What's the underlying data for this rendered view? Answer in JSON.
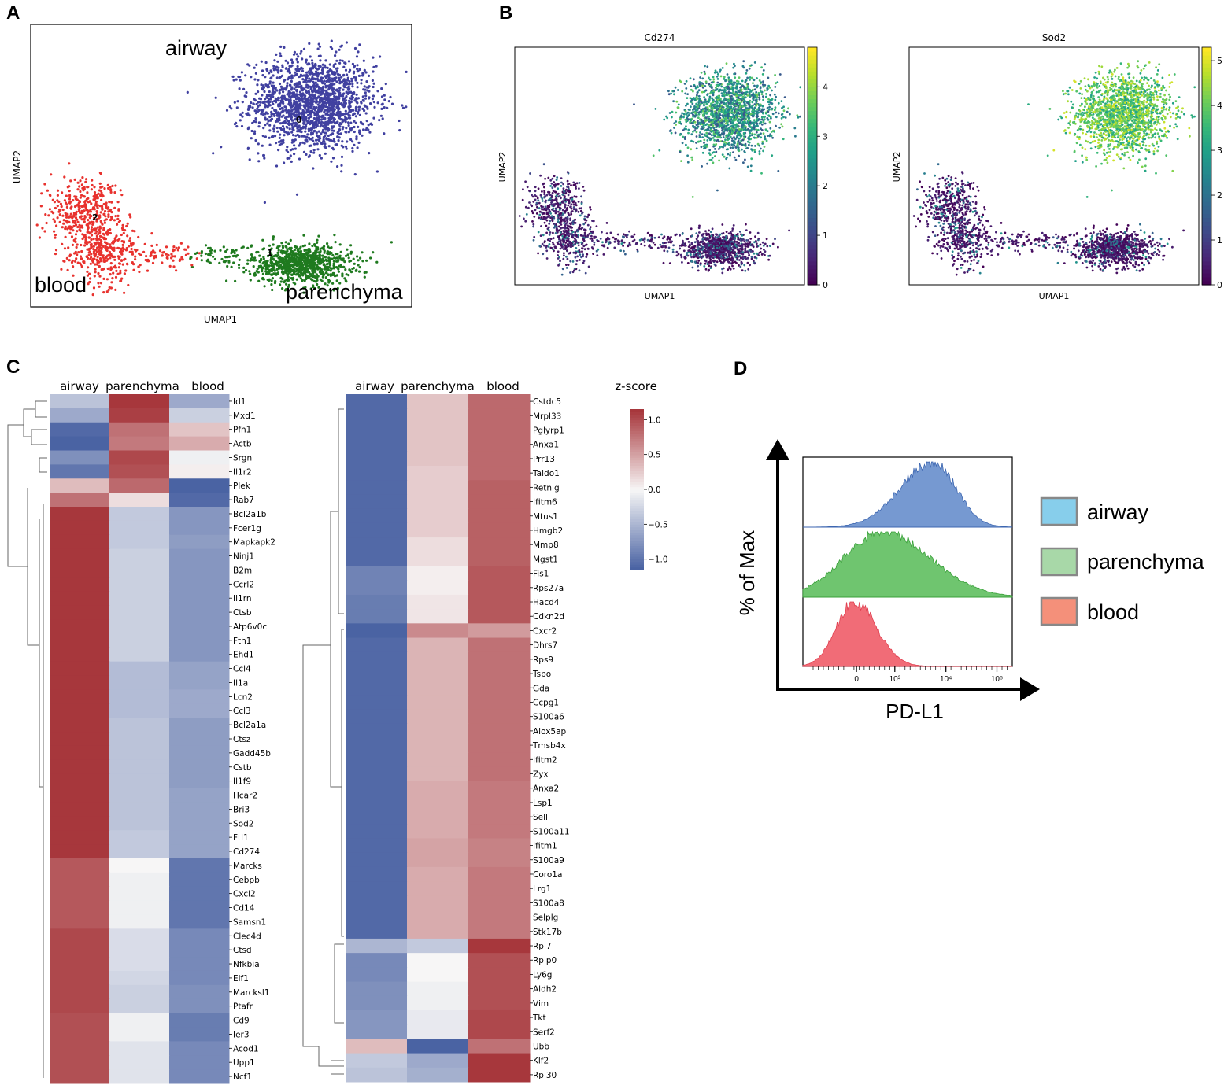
{
  "panel_letters": [
    "A",
    "B",
    "C",
    "D"
  ],
  "colors": {
    "airway": "#4040a0",
    "parenchyma": "#1f7a1f",
    "blood": "#e8322e",
    "hm_high": "#a7373c",
    "hm_mid": "#f7f6f6",
    "hm_low": "#4a63a3",
    "flow_airway": "#6f94cf",
    "flow_parenchyma": "#67c267",
    "flow_blood": "#f06470",
    "legend_airway": "#87ceeb",
    "legend_parenchyma": "#a8d8a8",
    "legend_blood": "#f4907a"
  },
  "chart_data": [
    {
      "type": "scatter",
      "panel": "A",
      "xlabel": "UMAP1",
      "ylabel": "UMAP2",
      "cluster_labels": [
        "airway",
        "parenchyma",
        "blood"
      ],
      "cluster_ids": [
        "0",
        "1",
        "2"
      ],
      "clusters": [
        {
          "name": "airway",
          "id": "0",
          "center": [
            3.0,
            6.5
          ],
          "spread": [
            2.0,
            1.9
          ],
          "n": 1700
        },
        {
          "name": "parenchyma",
          "id": "1",
          "center": [
            2.6,
            -0.6
          ],
          "spread": [
            1.6,
            0.8
          ],
          "n": 900
        },
        {
          "name": "blood",
          "id": "2",
          "center": [
            -4.8,
            0.8
          ],
          "spread": [
            1.1,
            1.3
          ],
          "n": 700
        }
      ]
    },
    {
      "type": "scatter",
      "panel": "B",
      "title": "Cd274",
      "xlabel": "UMAP1",
      "ylabel": "UMAP2",
      "colorbar_ticks": [
        "0",
        "1",
        "2",
        "3",
        "4"
      ],
      "colorbar_range": [
        0,
        4.8
      ]
    },
    {
      "type": "scatter",
      "panel": "B",
      "title": "Sod2",
      "xlabel": "UMAP1",
      "ylabel": "UMAP2",
      "colorbar_ticks": [
        "0",
        "1",
        "2",
        "3",
        "4",
        "5"
      ],
      "colorbar_range": [
        0,
        5.3
      ]
    },
    {
      "type": "heatmap",
      "panel": "C",
      "columns": [
        "airway",
        "parenchyma",
        "blood"
      ],
      "legend_title": "z-score",
      "legend_ticks": [
        "1.0",
        "0.5",
        "0.0",
        "−0.5",
        "−1.0"
      ],
      "zlim": [
        -1.15,
        1.15
      ],
      "left": {
        "rows": [
          "Id1",
          "Mxd1",
          "Pfn1",
          "Actb",
          "Srgn",
          "Il1r2",
          "Plek",
          "Rab7",
          "Bcl2a1b",
          "Fcer1g",
          "Mapkapk2",
          "Ninj1",
          "B2m",
          "Ccrl2",
          "Il1rn",
          "Ctsb",
          "Atp6v0c",
          "Fth1",
          "Ehd1",
          "Ccl4",
          "Il1a",
          "Lcn2",
          "Ccl3",
          "Bcl2a1a",
          "Ctsz",
          "Gadd45b",
          "Cstb",
          "Il1f9",
          "Hcar2",
          "Bri3",
          "Sod2",
          "Ftl1",
          "Cd274",
          "Marcks",
          "Cebpb",
          "Cxcl2",
          "Cd14",
          "Samsn1",
          "Clec4d",
          "Ctsd",
          "Nfkbia",
          "Eif1",
          "Marcksl1",
          "Ptafr",
          "Cd9",
          "Ier3",
          "Acod1",
          "Upp1",
          "Ncf1"
        ],
        "values": [
          [
            -0.4,
            1.15,
            -0.6
          ],
          [
            -0.6,
            1.1,
            -0.3
          ],
          [
            -1.1,
            0.8,
            0.3
          ],
          [
            -1.15,
            0.75,
            0.45
          ],
          [
            -0.8,
            1.05,
            -0.05
          ],
          [
            -1.0,
            1.0,
            0.05
          ],
          [
            0.35,
            0.85,
            -1.15
          ],
          [
            0.8,
            0.15,
            -1.1
          ],
          [
            1.15,
            -0.35,
            -0.75
          ],
          [
            1.15,
            -0.35,
            -0.75
          ],
          [
            1.15,
            -0.35,
            -0.7
          ],
          [
            1.15,
            -0.3,
            -0.75
          ],
          [
            1.15,
            -0.3,
            -0.75
          ],
          [
            1.15,
            -0.3,
            -0.75
          ],
          [
            1.15,
            -0.3,
            -0.75
          ],
          [
            1.15,
            -0.3,
            -0.75
          ],
          [
            1.15,
            -0.3,
            -0.75
          ],
          [
            1.15,
            -0.3,
            -0.75
          ],
          [
            1.15,
            -0.3,
            -0.75
          ],
          [
            1.15,
            -0.45,
            -0.65
          ],
          [
            1.15,
            -0.45,
            -0.65
          ],
          [
            1.15,
            -0.45,
            -0.6
          ],
          [
            1.15,
            -0.45,
            -0.6
          ],
          [
            1.15,
            -0.4,
            -0.7
          ],
          [
            1.15,
            -0.4,
            -0.7
          ],
          [
            1.15,
            -0.4,
            -0.7
          ],
          [
            1.15,
            -0.4,
            -0.7
          ],
          [
            1.15,
            -0.4,
            -0.7
          ],
          [
            1.15,
            -0.4,
            -0.65
          ],
          [
            1.15,
            -0.4,
            -0.65
          ],
          [
            1.15,
            -0.4,
            -0.65
          ],
          [
            1.15,
            -0.35,
            -0.65
          ],
          [
            1.15,
            -0.35,
            -0.65
          ],
          [
            0.95,
            0.0,
            -1.0
          ],
          [
            0.95,
            -0.05,
            -1.0
          ],
          [
            0.95,
            -0.05,
            -1.0
          ],
          [
            0.95,
            -0.05,
            -1.0
          ],
          [
            0.95,
            -0.05,
            -1.0
          ],
          [
            1.05,
            -0.2,
            -0.85
          ],
          [
            1.05,
            -0.2,
            -0.85
          ],
          [
            1.05,
            -0.2,
            -0.85
          ],
          [
            1.05,
            -0.25,
            -0.85
          ],
          [
            1.05,
            -0.3,
            -0.8
          ],
          [
            1.05,
            -0.3,
            -0.8
          ],
          [
            1.0,
            -0.05,
            -0.95
          ],
          [
            1.0,
            -0.05,
            -0.95
          ],
          [
            1.0,
            -0.15,
            -0.85
          ],
          [
            1.0,
            -0.15,
            -0.85
          ],
          [
            1.0,
            -0.15,
            -0.85
          ]
        ]
      },
      "right": {
        "rows": [
          "Cstdc5",
          "Mrpl33",
          "Pglyrp1",
          "Anxa1",
          "Prr13",
          "Taldo1",
          "Retnlg",
          "Ifitm6",
          "Mtus1",
          "Hmgb2",
          "Mmp8",
          "Mgst1",
          "Fis1",
          "Rps27a",
          "Hacd4",
          "Cdkn2d",
          "Cxcr2",
          "Dhrs7",
          "Rps9",
          "Tspo",
          "Gda",
          "Ccpg1",
          "S100a6",
          "Alox5ap",
          "Tmsb4x",
          "Ifitm2",
          "Zyx",
          "Anxa2",
          "Lsp1",
          "Sell",
          "S100a11",
          "Ifitm1",
          "S100a9",
          "Coro1a",
          "Lrg1",
          "S100a8",
          "Selplg",
          "Stk17b",
          "Rpl7",
          "Rplp0",
          "Ly6g",
          "Aldh2",
          "Vim",
          "Tkt",
          "Serf2",
          "Ubb",
          "Klf2",
          "Rpl30"
        ],
        "values": [
          [
            -1.1,
            0.3,
            0.85
          ],
          [
            -1.1,
            0.3,
            0.85
          ],
          [
            -1.1,
            0.3,
            0.85
          ],
          [
            -1.1,
            0.3,
            0.85
          ],
          [
            -1.1,
            0.3,
            0.85
          ],
          [
            -1.1,
            0.25,
            0.85
          ],
          [
            -1.1,
            0.25,
            0.9
          ],
          [
            -1.1,
            0.25,
            0.9
          ],
          [
            -1.1,
            0.25,
            0.9
          ],
          [
            -1.1,
            0.25,
            0.9
          ],
          [
            -1.1,
            0.15,
            0.9
          ],
          [
            -1.1,
            0.15,
            0.9
          ],
          [
            -0.9,
            0.05,
            0.95
          ],
          [
            -0.9,
            0.05,
            0.95
          ],
          [
            -0.95,
            0.1,
            0.95
          ],
          [
            -0.95,
            0.1,
            0.95
          ],
          [
            -1.15,
            0.65,
            0.55
          ],
          [
            -1.1,
            0.4,
            0.8
          ],
          [
            -1.1,
            0.4,
            0.8
          ],
          [
            -1.1,
            0.4,
            0.8
          ],
          [
            -1.1,
            0.4,
            0.8
          ],
          [
            -1.1,
            0.4,
            0.8
          ],
          [
            -1.1,
            0.4,
            0.8
          ],
          [
            -1.1,
            0.4,
            0.8
          ],
          [
            -1.1,
            0.4,
            0.8
          ],
          [
            -1.1,
            0.4,
            0.8
          ],
          [
            -1.1,
            0.4,
            0.8
          ],
          [
            -1.1,
            0.45,
            0.75
          ],
          [
            -1.1,
            0.45,
            0.75
          ],
          [
            -1.1,
            0.45,
            0.75
          ],
          [
            -1.1,
            0.45,
            0.75
          ],
          [
            -1.1,
            0.5,
            0.7
          ],
          [
            -1.1,
            0.5,
            0.7
          ],
          [
            -1.1,
            0.45,
            0.75
          ],
          [
            -1.1,
            0.45,
            0.75
          ],
          [
            -1.1,
            0.45,
            0.75
          ],
          [
            -1.1,
            0.45,
            0.75
          ],
          [
            -1.1,
            0.45,
            0.75
          ],
          [
            -0.5,
            -0.35,
            1.15
          ],
          [
            -0.85,
            0.0,
            1.0
          ],
          [
            -0.85,
            0.0,
            1.0
          ],
          [
            -0.8,
            -0.05,
            1.0
          ],
          [
            -0.8,
            -0.05,
            1.0
          ],
          [
            -0.75,
            -0.1,
            1.05
          ],
          [
            -0.75,
            -0.1,
            1.05
          ],
          [
            0.35,
            -1.15,
            0.8
          ],
          [
            -0.35,
            -0.6,
            1.15
          ],
          [
            -0.4,
            -0.55,
            1.15
          ]
        ]
      }
    },
    {
      "type": "area",
      "panel": "D",
      "xlabel": "PD-L1",
      "ylabel": "% of Max",
      "x_tick_labels": [
        "0",
        "10³",
        "10⁴",
        "10⁵"
      ],
      "legend": [
        "airway",
        "parenchyma",
        "blood"
      ],
      "series": [
        {
          "name": "airway",
          "peak_log10": 3.75,
          "width": 0.45,
          "skew": "left"
        },
        {
          "name": "parenchyma",
          "peak_log10": 2.75,
          "width": 0.75,
          "skew": "right"
        },
        {
          "name": "blood",
          "peak_log10": 2.2,
          "width": 0.35,
          "skew": "right"
        }
      ]
    }
  ]
}
